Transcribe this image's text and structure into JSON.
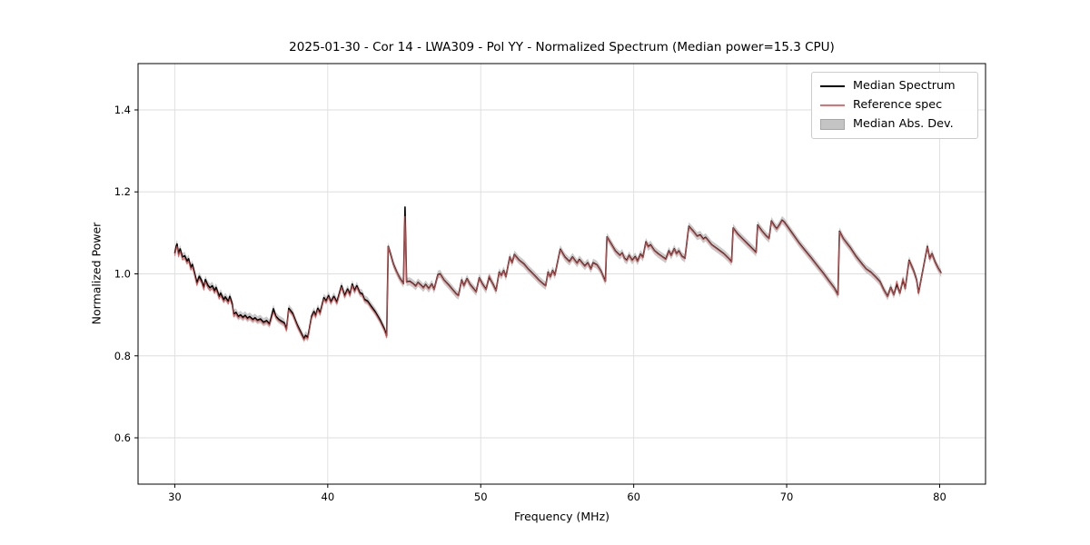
{
  "chart_data": {
    "type": "line",
    "title": "2025-01-30 - Cor 14 - LWA309 - Pol YY - Normalized Spectrum (Median power=15.3 CPU)",
    "xlabel": "Frequency (MHz)",
    "ylabel": "Normalized Power",
    "xlim": [
      27.6,
      83.0
    ],
    "ylim": [
      0.487,
      1.513
    ],
    "xticks": [
      30,
      40,
      50,
      60,
      70,
      80
    ],
    "yticks": [
      0.6,
      0.8,
      1.0,
      1.2,
      1.4
    ],
    "grid": true,
    "grid_color": "#dedede",
    "spine_color": "#000000",
    "legend_position": "upper right",
    "x": [
      30.0,
      30.1,
      30.15,
      30.25,
      30.35,
      30.5,
      30.65,
      30.8,
      30.9,
      31.05,
      31.15,
      31.3,
      31.45,
      31.6,
      31.75,
      31.9,
      32.0,
      32.15,
      32.3,
      32.45,
      32.6,
      32.7,
      32.9,
      33.0,
      33.2,
      33.3,
      33.5,
      33.6,
      33.75,
      33.85,
      34.0,
      34.15,
      34.3,
      34.45,
      34.6,
      34.75,
      34.9,
      35.1,
      35.25,
      35.4,
      35.6,
      35.8,
      36.0,
      36.2,
      36.45,
      36.6,
      36.8,
      37.0,
      37.15,
      37.3,
      37.45,
      37.7,
      38.0,
      38.3,
      38.45,
      38.55,
      38.7,
      38.95,
      39.1,
      39.2,
      39.35,
      39.5,
      39.75,
      39.9,
      40.05,
      40.2,
      40.4,
      40.6,
      40.9,
      41.1,
      41.3,
      41.45,
      41.6,
      41.75,
      41.9,
      42.1,
      42.25,
      42.4,
      42.6,
      42.8,
      43.1,
      43.4,
      43.7,
      43.85,
      43.95,
      44.1,
      44.3,
      44.5,
      44.7,
      44.95,
      45.05,
      45.15,
      45.35,
      45.55,
      45.75,
      45.9,
      46.1,
      46.25,
      46.4,
      46.6,
      46.8,
      46.95,
      47.2,
      47.35,
      47.6,
      47.9,
      48.15,
      48.4,
      48.55,
      48.75,
      48.9,
      49.1,
      49.3,
      49.55,
      49.7,
      49.9,
      50.1,
      50.35,
      50.55,
      50.8,
      51.0,
      51.2,
      51.35,
      51.5,
      51.65,
      51.9,
      52.05,
      52.2,
      52.5,
      52.8,
      53.1,
      53.5,
      53.8,
      54.1,
      54.25,
      54.4,
      54.55,
      54.7,
      54.85,
      55.2,
      55.5,
      55.8,
      56.0,
      56.3,
      56.45,
      56.8,
      57.0,
      57.2,
      57.35,
      57.6,
      57.85,
      58.05,
      58.15,
      58.25,
      58.5,
      58.8,
      59.1,
      59.25,
      59.4,
      59.55,
      59.7,
      59.9,
      60.1,
      60.25,
      60.45,
      60.6,
      60.8,
      60.95,
      61.1,
      61.35,
      61.6,
      61.9,
      62.1,
      62.3,
      62.45,
      62.65,
      62.8,
      62.95,
      63.15,
      63.35,
      63.6,
      63.9,
      64.15,
      64.35,
      64.55,
      64.7,
      65.1,
      65.5,
      65.9,
      66.2,
      66.4,
      66.5,
      66.8,
      67.1,
      67.5,
      67.8,
      68.0,
      68.1,
      68.4,
      68.65,
      68.85,
      69.0,
      69.2,
      69.35,
      69.55,
      69.7,
      69.85,
      70.1,
      70.4,
      70.8,
      71.2,
      71.6,
      72.0,
      72.4,
      72.8,
      73.1,
      73.35,
      73.45,
      73.7,
      74.15,
      74.5,
      74.95,
      75.2,
      75.5,
      75.75,
      76.1,
      76.35,
      76.6,
      76.8,
      77.0,
      77.2,
      77.4,
      77.6,
      77.75,
      78.0,
      78.3,
      78.5,
      78.62,
      79.2,
      79.35,
      79.5,
      79.7,
      79.9,
      80.1
    ],
    "series": [
      {
        "name": "Median Spectrum",
        "color": "#000000",
        "line_width": 1.6,
        "values": [
          1.05,
          1.068,
          1.073,
          1.048,
          1.061,
          1.041,
          1.044,
          1.031,
          1.037,
          1.016,
          1.023,
          1.001,
          0.978,
          0.994,
          0.984,
          0.967,
          0.986,
          0.973,
          0.966,
          0.971,
          0.959,
          0.967,
          0.945,
          0.953,
          0.937,
          0.944,
          0.933,
          0.945,
          0.928,
          0.902,
          0.906,
          0.896,
          0.9,
          0.894,
          0.899,
          0.892,
          0.896,
          0.889,
          0.893,
          0.887,
          0.89,
          0.882,
          0.886,
          0.878,
          0.915,
          0.897,
          0.889,
          0.884,
          0.881,
          0.865,
          0.916,
          0.904,
          0.876,
          0.853,
          0.842,
          0.85,
          0.845,
          0.897,
          0.908,
          0.898,
          0.916,
          0.905,
          0.942,
          0.934,
          0.947,
          0.932,
          0.945,
          0.931,
          0.971,
          0.947,
          0.963,
          0.95,
          0.975,
          0.959,
          0.971,
          0.954,
          0.952,
          0.938,
          0.934,
          0.923,
          0.908,
          0.889,
          0.866,
          0.849,
          1.067,
          1.049,
          1.023,
          1.005,
          0.99,
          0.976,
          1.163,
          0.98,
          0.982,
          0.977,
          0.97,
          0.979,
          0.972,
          0.966,
          0.974,
          0.964,
          0.975,
          0.962,
          0.998,
          1.0,
          0.985,
          0.973,
          0.962,
          0.951,
          0.947,
          0.985,
          0.971,
          0.988,
          0.974,
          0.963,
          0.956,
          0.99,
          0.976,
          0.962,
          0.993,
          0.975,
          0.959,
          1.004,
          0.996,
          1.008,
          0.993,
          1.041,
          1.027,
          1.047,
          1.034,
          1.025,
          1.012,
          0.997,
          0.985,
          0.975,
          0.971,
          1.004,
          0.993,
          1.008,
          0.997,
          1.06,
          1.041,
          1.03,
          1.041,
          1.026,
          1.035,
          1.019,
          1.027,
          1.012,
          1.027,
          1.022,
          1.008,
          0.99,
          0.982,
          1.09,
          1.075,
          1.056,
          1.045,
          1.051,
          1.038,
          1.033,
          1.045,
          1.033,
          1.042,
          1.031,
          1.048,
          1.04,
          1.078,
          1.066,
          1.071,
          1.057,
          1.049,
          1.041,
          1.036,
          1.056,
          1.045,
          1.061,
          1.049,
          1.056,
          1.043,
          1.038,
          1.116,
          1.104,
          1.092,
          1.095,
          1.085,
          1.089,
          1.071,
          1.06,
          1.049,
          1.038,
          1.029,
          1.112,
          1.097,
          1.086,
          1.071,
          1.06,
          1.052,
          1.119,
          1.104,
          1.093,
          1.086,
          1.129,
          1.117,
          1.11,
          1.121,
          1.131,
          1.126,
          1.113,
          1.097,
          1.076,
          1.057,
          1.039,
          1.02,
          1.001,
          0.981,
          0.966,
          0.949,
          1.104,
          1.086,
          1.064,
          1.044,
          1.023,
          1.012,
          1.004,
          0.995,
          0.981,
          0.961,
          0.945,
          0.967,
          0.949,
          0.975,
          0.953,
          0.986,
          0.964,
          1.033,
          1.008,
          0.985,
          0.953,
          1.067,
          1.037,
          1.049,
          1.029,
          1.014,
          1.002
        ]
      },
      {
        "name": "Reference spec",
        "color": "#e25555",
        "line_width": 1.2,
        "opacity": 0.85,
        "values": [
          1.044,
          1.062,
          1.067,
          1.042,
          1.055,
          1.035,
          1.038,
          1.025,
          1.031,
          1.01,
          1.017,
          0.995,
          0.972,
          0.988,
          0.978,
          0.961,
          0.98,
          0.967,
          0.96,
          0.965,
          0.953,
          0.961,
          0.939,
          0.947,
          0.931,
          0.938,
          0.927,
          0.939,
          0.922,
          0.896,
          0.902,
          0.892,
          0.896,
          0.89,
          0.895,
          0.888,
          0.892,
          0.885,
          0.889,
          0.883,
          0.886,
          0.878,
          0.882,
          0.874,
          0.906,
          0.893,
          0.885,
          0.88,
          0.877,
          0.861,
          0.912,
          0.9,
          0.872,
          0.849,
          0.838,
          0.846,
          0.841,
          0.893,
          0.904,
          0.894,
          0.912,
          0.901,
          0.938,
          0.93,
          0.943,
          0.928,
          0.941,
          0.927,
          0.967,
          0.943,
          0.959,
          0.946,
          0.971,
          0.955,
          0.967,
          0.95,
          0.948,
          0.934,
          0.93,
          0.919,
          0.904,
          0.885,
          0.862,
          0.845,
          1.066,
          1.048,
          1.022,
          1.004,
          0.989,
          0.975,
          1.14,
          0.979,
          0.981,
          0.976,
          0.969,
          0.978,
          0.971,
          0.965,
          0.973,
          0.963,
          0.974,
          0.961,
          0.997,
          0.999,
          0.984,
          0.972,
          0.961,
          0.95,
          0.946,
          0.984,
          0.97,
          0.987,
          0.973,
          0.962,
          0.955,
          0.989,
          0.975,
          0.961,
          0.996,
          0.974,
          0.958,
          1.003,
          0.995,
          1.007,
          0.992,
          1.04,
          1.026,
          1.046,
          1.033,
          1.024,
          1.011,
          0.996,
          0.984,
          0.974,
          0.97,
          1.003,
          0.992,
          1.007,
          0.996,
          1.059,
          1.04,
          1.029,
          1.04,
          1.025,
          1.034,
          1.018,
          1.026,
          1.011,
          1.026,
          1.021,
          1.007,
          0.989,
          0.981,
          1.089,
          1.074,
          1.055,
          1.044,
          1.05,
          1.037,
          1.032,
          1.044,
          1.032,
          1.041,
          1.03,
          1.047,
          1.039,
          1.077,
          1.065,
          1.07,
          1.056,
          1.048,
          1.04,
          1.035,
          1.055,
          1.044,
          1.06,
          1.048,
          1.055,
          1.042,
          1.037,
          1.115,
          1.103,
          1.091,
          1.094,
          1.084,
          1.088,
          1.07,
          1.059,
          1.048,
          1.037,
          1.028,
          1.111,
          1.096,
          1.085,
          1.07,
          1.059,
          1.051,
          1.118,
          1.103,
          1.092,
          1.085,
          1.128,
          1.116,
          1.109,
          1.12,
          1.13,
          1.125,
          1.112,
          1.096,
          1.075,
          1.056,
          1.038,
          1.019,
          1.0,
          0.98,
          0.965,
          0.948,
          1.103,
          1.085,
          1.063,
          1.043,
          1.022,
          1.011,
          1.003,
          0.994,
          0.98,
          0.96,
          0.944,
          0.966,
          0.948,
          0.982,
          0.952,
          0.99,
          0.963,
          1.032,
          1.007,
          0.984,
          0.952,
          1.066,
          1.036,
          1.048,
          1.028,
          1.013,
          1.001
        ]
      },
      {
        "name": "Median Abs. Dev.",
        "type": "band",
        "fill_color": "#c4c4c4",
        "edge_color": "#a6a6a6",
        "opacity": 0.9,
        "around": "Median Spectrum",
        "half_width": 0.01
      }
    ]
  }
}
